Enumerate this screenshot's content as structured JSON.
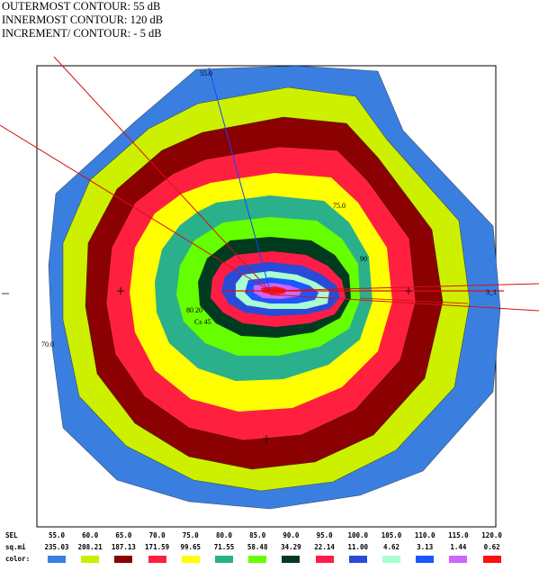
{
  "header": {
    "line1": "OUTERMOST CONTOUR: 55 dB",
    "line2": "INNERMOST CONTOUR: 120 dB",
    "line3": "INCREMENT/ CONTOUR: - 5 dB"
  },
  "map_labels": {
    "top": "55.0",
    "right_mid": "75.0",
    "left_low": "70.0",
    "right_tick": "90",
    "center_a": "80 20",
    "center_b": "Cs 45",
    "runway": "3_1"
  },
  "legend": {
    "row_labels": {
      "sel": "SEL",
      "area": "sq.mi",
      "color": "color:"
    },
    "levels": [
      "55.0",
      "60.0",
      "65.0",
      "70.0",
      "75.0",
      "80.0",
      "85.0",
      "90.0",
      "95.0",
      "100.0",
      "105.0",
      "110.0",
      "115.0",
      "120.0"
    ],
    "areas": [
      "235.03",
      "208.21",
      "187.13",
      "171.59",
      "99.65",
      "71.55",
      "58.48",
      "34.29",
      "22.14",
      "11.00",
      "4.62",
      "3.13",
      "1.44",
      "0.62"
    ],
    "colors": [
      "#3a7fe0",
      "#ccf000",
      "#8b0000",
      "#ff2040",
      "#ffff00",
      "#2ab08a",
      "#66ff00",
      "#003b1f",
      "#ff1d47",
      "#2a4bd8",
      "#a8ffd0",
      "#1e55ff",
      "#cc66ff",
      "#ff1010"
    ]
  }
}
